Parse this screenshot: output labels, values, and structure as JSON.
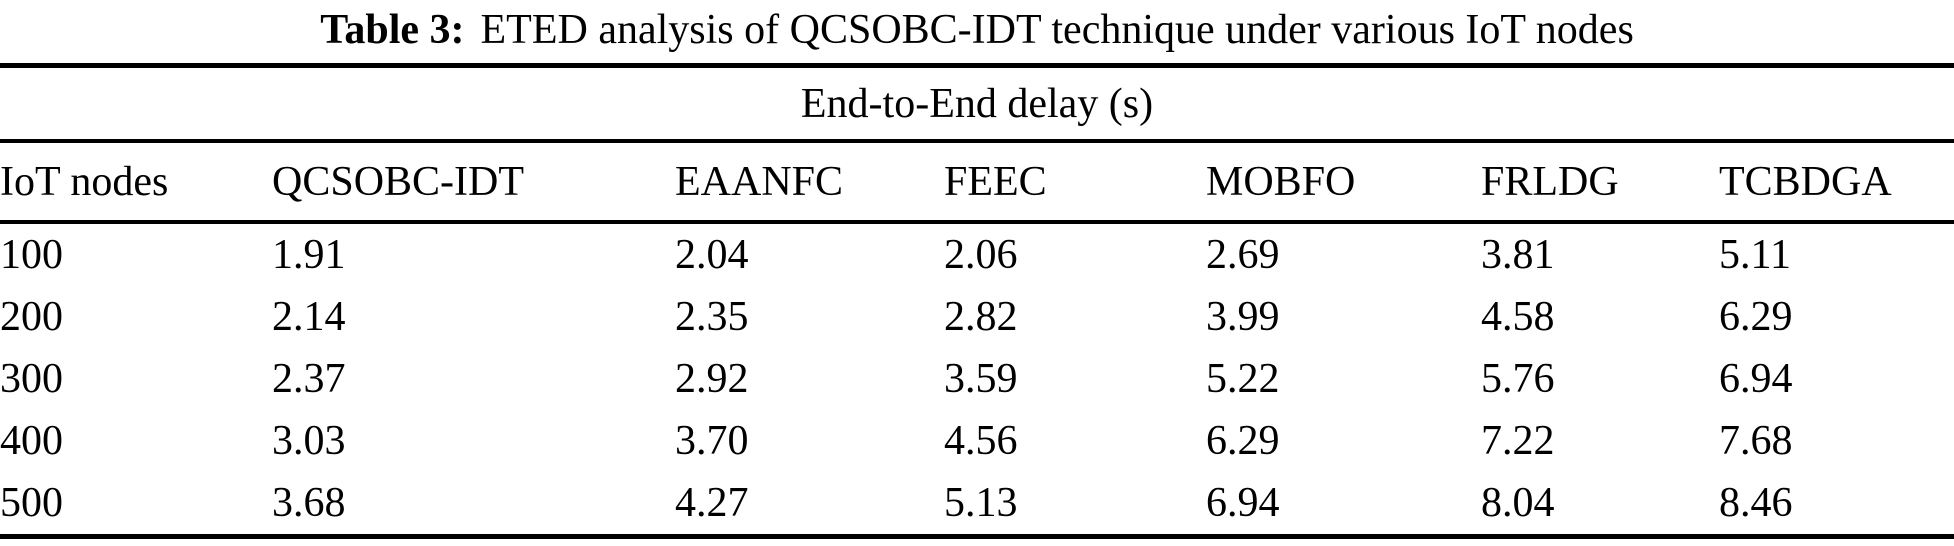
{
  "table": {
    "caption_label": "Table 3:",
    "caption_text": "ETED analysis of QCSOBC-IDT technique under various IoT nodes",
    "span_header": "End-to-End delay (s)",
    "columns": [
      "IoT nodes",
      "QCSOBC-IDT",
      "EAANFC",
      "FEEC",
      "MOBFO",
      "FRLDG",
      "TCBDGA"
    ],
    "rows": [
      [
        "100",
        "1.91",
        "2.04",
        "2.06",
        "2.69",
        "3.81",
        "5.11"
      ],
      [
        "200",
        "2.14",
        "2.35",
        "2.82",
        "3.99",
        "4.58",
        "6.29"
      ],
      [
        "300",
        "2.37",
        "2.92",
        "3.59",
        "5.22",
        "5.76",
        "6.94"
      ],
      [
        "400",
        "3.03",
        "3.70",
        "4.56",
        "6.29",
        "7.22",
        "7.68"
      ],
      [
        "500",
        "3.68",
        "4.27",
        "5.13",
        "6.94",
        "8.04",
        "8.46"
      ]
    ],
    "colors": {
      "text": "#000000",
      "background": "#ffffff",
      "rule": "#000000"
    }
  }
}
